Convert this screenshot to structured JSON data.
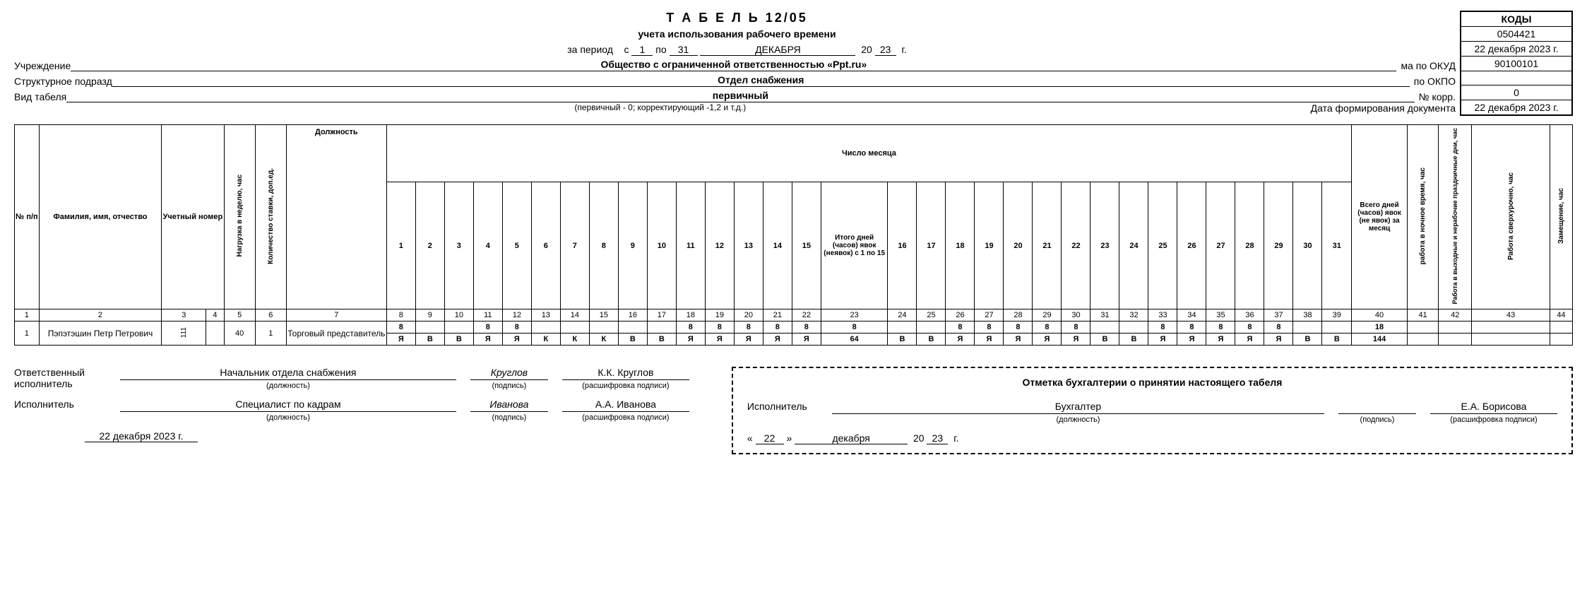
{
  "title": "Т А Б Е Л Ь 12/05",
  "subtitle": "учета использования рабочего времени",
  "period": {
    "label_za": "за период",
    "s": "с",
    "day_from": "1",
    "po": "по",
    "day_to": "31",
    "month": "ДЕКАБРЯ",
    "year_prefix": "20",
    "year": "23",
    "g": "г."
  },
  "institution_label": "Учреждение",
  "institution": "Общество с ограниченной ответственностью «Ppt.ru»",
  "struct_label": "Структурное подразд",
  "struct": "Отдел снабжения",
  "type_label": "Вид табеля",
  "type_value": "первичный",
  "type_note": "(первичный - 0; корректирующий -1,2 и т.д.)",
  "doc_date_label": "Дата формирования документа",
  "codes": {
    "header": "КОДЫ",
    "rows": [
      {
        "label": "ма по ОКУД",
        "value": "0504421"
      },
      {
        "label": "Дата",
        "value": "22 декабря 2023 г."
      },
      {
        "label": "по ОКПО",
        "value": "90100101"
      },
      {
        "label": "",
        "value": ""
      },
      {
        "label": "№ корр.",
        "value": "0"
      },
      {
        "label": "",
        "value": "22 декабря 2023 г."
      }
    ]
  },
  "columns": {
    "np": "№ п/п",
    "fio": "Фамилия, имя, отчество",
    "uchet": "Учетный номер",
    "nagruzka": "Нагрузка в неделю, час",
    "stavki": "Количество ставки, доп.ед.",
    "position": "Должность",
    "days_header": "Число месяца",
    "itog15": "Итого дней (часов) явок (неявок) с 1 по 15",
    "total_month": "Всего дней (часов) явок (не явок) за месяц",
    "night": "работа в ночное время, час",
    "holiday": "Работа в выходные и нерабочие праздничные дни, час",
    "overtime": "Работа сверхурочно, час",
    "zam": "Замещение, час"
  },
  "col_nums": [
    "1",
    "2",
    "3",
    "4",
    "5",
    "6",
    "7",
    "8",
    "9",
    "10",
    "11",
    "12",
    "13",
    "14",
    "15",
    "16",
    "17",
    "18",
    "19",
    "20",
    "21",
    "22",
    "23",
    "24",
    "25",
    "26",
    "27",
    "28",
    "29",
    "30",
    "31",
    "32",
    "33",
    "34",
    "35",
    "36",
    "37",
    "38",
    "39",
    "40",
    "41",
    "42",
    "43",
    "44"
  ],
  "days_1_15": [
    "1",
    "2",
    "3",
    "4",
    "5",
    "6",
    "7",
    "8",
    "9",
    "10",
    "11",
    "12",
    "13",
    "14",
    "15"
  ],
  "days_16_31": [
    "16",
    "17",
    "18",
    "19",
    "20",
    "21",
    "22",
    "23",
    "24",
    "25",
    "26",
    "27",
    "28",
    "29",
    "30",
    "31"
  ],
  "employee": {
    "n": "1",
    "fio": "Пэпэтэшин Петр Петрович",
    "uchet": "111",
    "blank4": "",
    "nagruzka": "40",
    "stavki": "1",
    "position": "Торговый представитель",
    "row1_1_15": [
      "8",
      "",
      "",
      "8",
      "8",
      "",
      "",
      "",
      "",
      "",
      "8",
      "8",
      "8",
      "8",
      "8"
    ],
    "row1_itog15": "8",
    "row1_16_31": [
      "",
      "",
      "8",
      "8",
      "8",
      "8",
      "8",
      "",
      "",
      "8",
      "8",
      "8",
      "8",
      "8",
      "",
      ""
    ],
    "row1_total": "18",
    "row2_1_15": [
      "Я",
      "В",
      "В",
      "Я",
      "Я",
      "К",
      "К",
      "К",
      "В",
      "В",
      "Я",
      "Я",
      "Я",
      "Я",
      "Я"
    ],
    "row2_itog15": "64",
    "row2_16_31": [
      "В",
      "В",
      "Я",
      "Я",
      "Я",
      "Я",
      "Я",
      "В",
      "В",
      "Я",
      "Я",
      "Я",
      "Я",
      "Я",
      "В",
      "В"
    ],
    "row2_total": "144"
  },
  "sign": {
    "resp_label": "Ответственный исполнитель",
    "resp_pos": "Начальник отдела снабжения",
    "resp_sign": "Круглов",
    "resp_name": "К.К. Круглов",
    "exec_label": "Исполнитель",
    "exec_pos": "Специалист по кадрам",
    "exec_sign": "Иванова",
    "exec_name": "А.А. Иванова",
    "date": "22 декабря 2023 г.",
    "cap_pos": "(должность)",
    "cap_sign": "(подпись)",
    "cap_name": "(расшифровка подписи)"
  },
  "accounting": {
    "title": "Отметка бухгалтерии о принятии настоящего табеля",
    "exec_label": "Исполнитель",
    "pos": "Бухгалтер",
    "name": "Е.А. Борисова",
    "day": "22",
    "month": "декабря",
    "year_prefix": "20",
    "year": "23",
    "g": "г.",
    "quote_l": "«",
    "quote_r": "»"
  }
}
